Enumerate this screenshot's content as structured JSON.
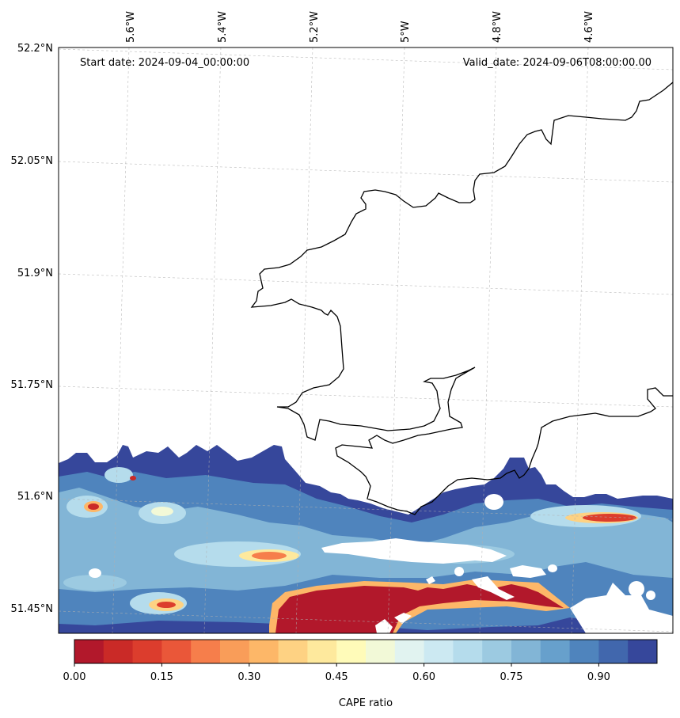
{
  "map": {
    "start_date": "Start date: 2024-09-04_00:00:00",
    "valid_date": "Valid_date: 2024-09-06T08:00:00.00",
    "lon_ticks": [
      "5.6°W",
      "5.4°W",
      "5.2°W",
      "5°W",
      "4.8°W",
      "4.6°W"
    ],
    "lat_ticks": [
      "52.2°N",
      "52.05°N",
      "51.9°N",
      "51.75°N",
      "51.6°N",
      "51.45°N"
    ],
    "variable": "CAPE ratio"
  },
  "colorbar": {
    "label": "CAPE ratio",
    "ticks": [
      "0.00",
      "0.15",
      "0.30",
      "0.45",
      "0.60",
      "0.75",
      "0.90"
    ],
    "colors": [
      "#b2182b",
      "#ca2a27",
      "#dc3d2d",
      "#ea5739",
      "#f67e4b",
      "#f99d59",
      "#fdb768",
      "#fed283",
      "#fee99d",
      "#fffbb9",
      "#f2f9d7",
      "#e1f3f0",
      "#cce9f2",
      "#b5dcec",
      "#9ccae1",
      "#82b5d6",
      "#67a0cc",
      "#4f84bd",
      "#4167ad",
      "#36479b"
    ]
  }
}
